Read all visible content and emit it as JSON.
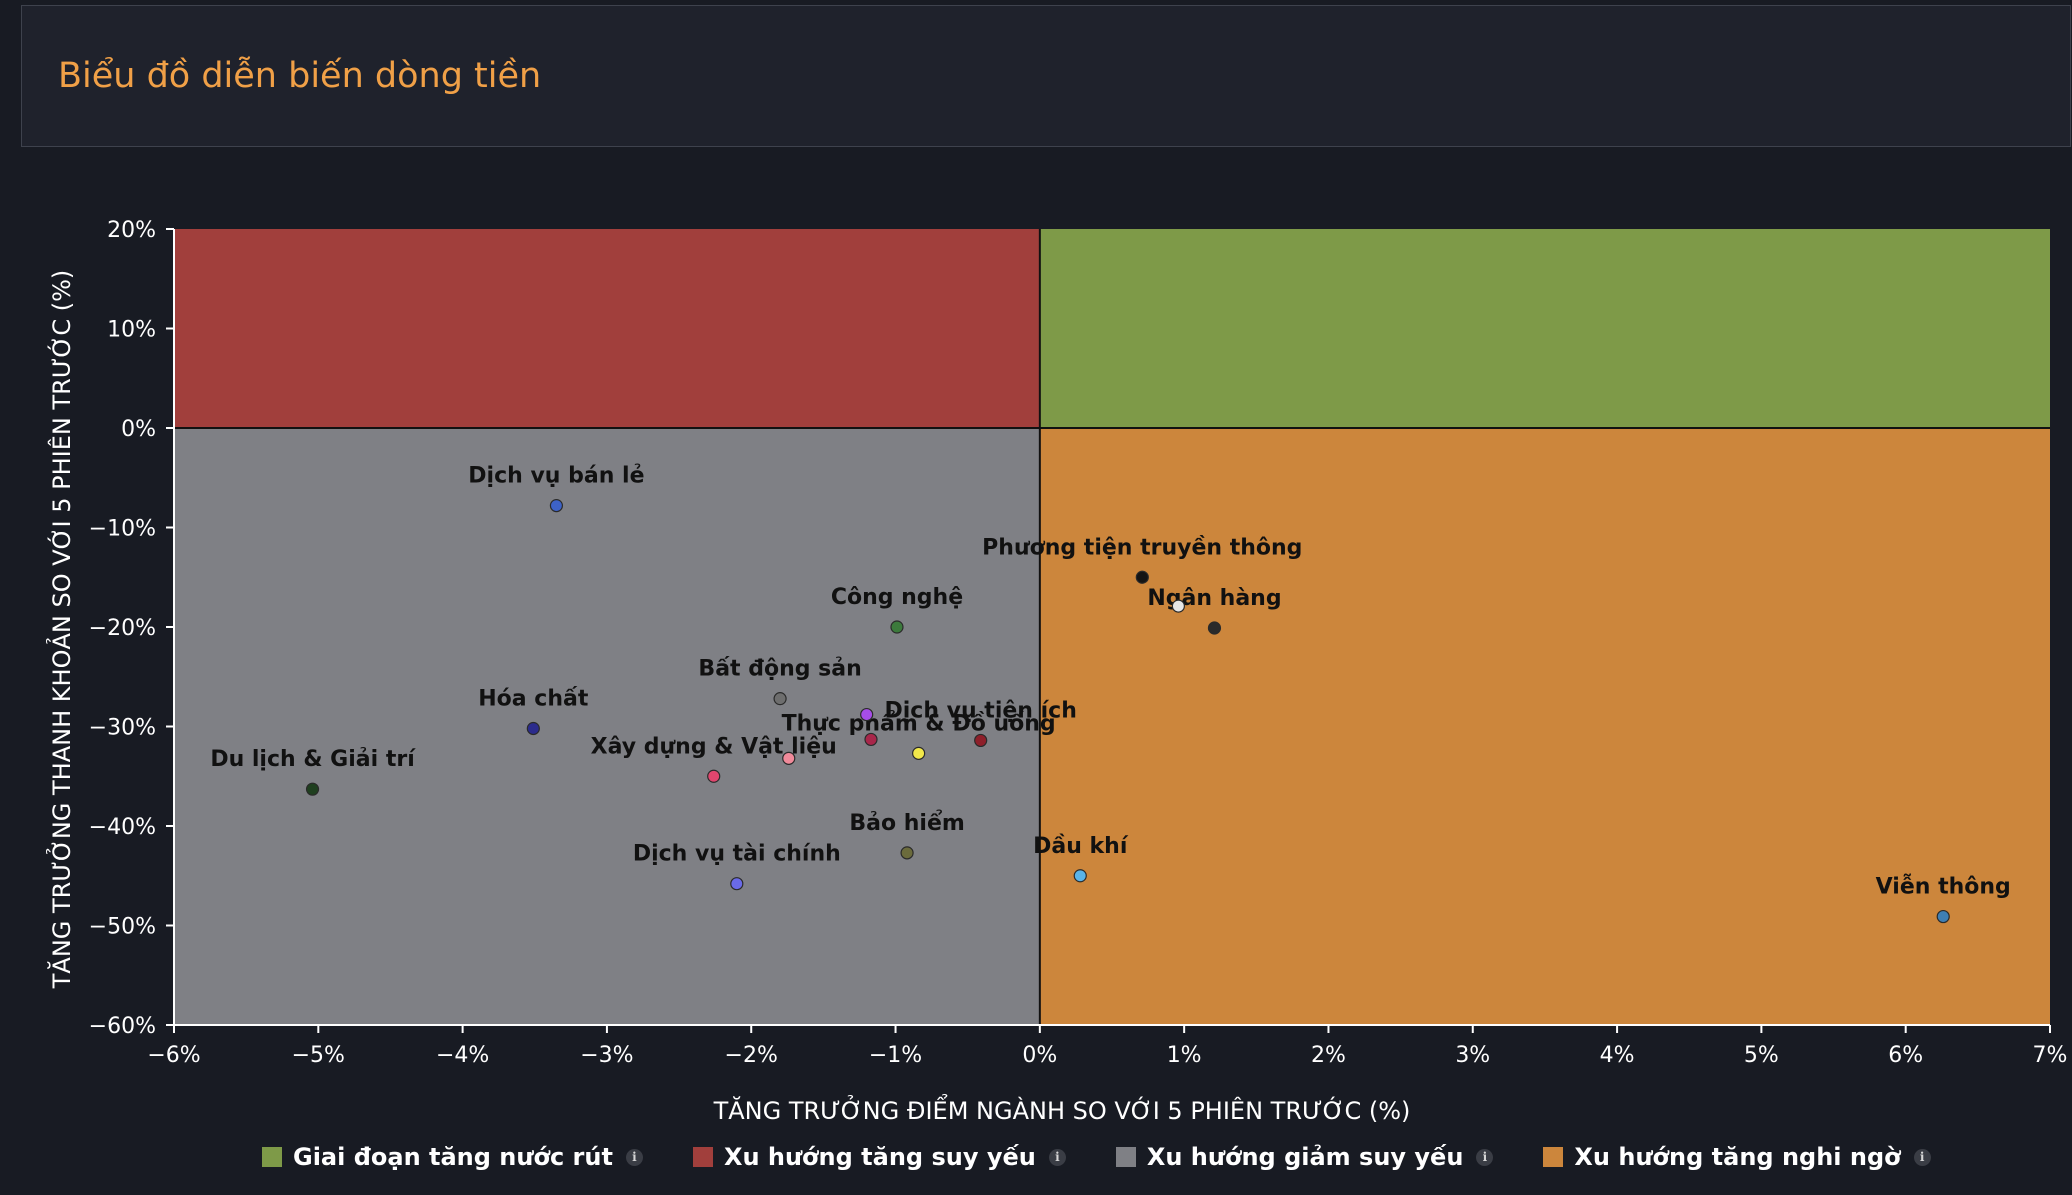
{
  "page": {
    "title": "Biểu đồ diễn biến dòng tiền"
  },
  "chart_data": {
    "type": "scatter",
    "title": "",
    "xlabel": "TĂNG TRƯỞNG ĐIỂM NGÀNH SO VỚI 5 PHIÊN TRƯỚC (%)",
    "ylabel": "TĂNG TRƯỞNG THANH KHOẢN SO VỚI 5 PHIÊN TRƯỚC (%)",
    "xlim": [
      -6,
      7
    ],
    "ylim": [
      -60,
      20
    ],
    "x_ticks": [
      -6,
      -5,
      -4,
      -3,
      -2,
      -1,
      0,
      1,
      2,
      3,
      4,
      5,
      6,
      7
    ],
    "y_ticks": [
      20,
      10,
      0,
      -10,
      -20,
      -30,
      -40,
      -50,
      -60
    ],
    "x_tick_labels": [
      "−6%",
      "−5%",
      "−4%",
      "−3%",
      "−2%",
      "−1%",
      "0%",
      "1%",
      "2%",
      "3%",
      "4%",
      "5%",
      "6%",
      "7%"
    ],
    "y_tick_labels": [
      "20%",
      "10%",
      "0%",
      "−10%",
      "−20%",
      "−30%",
      "−40%",
      "−50%",
      "−60%"
    ],
    "grid": false,
    "legend_position": "bottom",
    "quadrants": [
      {
        "key": "top-left",
        "color": "#a13f3c"
      },
      {
        "key": "top-right",
        "color": "#7e9a48"
      },
      {
        "key": "bottom-left",
        "color": "#7f8085"
      },
      {
        "key": "bottom-right",
        "color": "#cc863c"
      }
    ],
    "legend": [
      {
        "label": "Giai đoạn tăng nước rút",
        "color": "#7e9a48",
        "icon": "info-icon"
      },
      {
        "label": "Xu hướng tăng suy yếu",
        "color": "#a13f3c",
        "icon": "info-icon"
      },
      {
        "label": "Xu hướng giảm suy yếu",
        "color": "#7f8085",
        "icon": "info-icon"
      },
      {
        "label": "Xu hướng tăng nghi ngờ",
        "color": "#cc863c",
        "icon": "info-icon"
      }
    ],
    "points": [
      {
        "name": "Dịch vụ bán lẻ",
        "x": -3.35,
        "y": -7.8,
        "color": "#3d62c8"
      },
      {
        "name": "Công nghệ",
        "x": -0.99,
        "y": -20.0,
        "color": "#3c7a3c"
      },
      {
        "name": "Bất động sản",
        "x": -1.8,
        "y": -27.2,
        "color": "#6e6e6e"
      },
      {
        "name": "Hóa chất",
        "x": -3.51,
        "y": -30.2,
        "color": "#2b2b8c"
      },
      {
        "name": "Du lịch & Giải trí",
        "x": -5.04,
        "y": -36.3,
        "color": "#1f3f1f"
      },
      {
        "name": "Xây dựng & Vật liệu",
        "x": -2.26,
        "y": -35.0,
        "color": "#e0466e"
      },
      {
        "name": "Dịch vụ tài chính",
        "x": -2.1,
        "y": -45.8,
        "color": "#6a6ae8"
      },
      {
        "name": "Bảo hiểm",
        "x": -0.92,
        "y": -42.7,
        "color": "#6b6b3c"
      },
      {
        "name": "Thực phẩm & Đồ uống",
        "x": -0.84,
        "y": -32.7,
        "color": "#f2e84a"
      },
      {
        "name": "Dịch vụ tiện ích",
        "x": -0.41,
        "y": -31.4,
        "color": "#8e1f2a"
      },
      {
        "name": "Phương tiện truyền thông",
        "x": 0.71,
        "y": -15.0,
        "color": "#141414"
      },
      {
        "name": "Ngân hàng",
        "x": 1.21,
        "y": -20.1,
        "color": "#2a2a2a"
      },
      {
        "name": "Dầu khí",
        "x": 0.28,
        "y": -45.0,
        "color": "#5ab4e8"
      },
      {
        "name": "Viễn thông",
        "x": 6.26,
        "y": -49.1,
        "color": "#3f7fb4"
      },
      {
        "name": "",
        "x": -1.2,
        "y": -28.8,
        "color": "#a64de8"
      },
      {
        "name": "",
        "x": -1.17,
        "y": -31.3,
        "color": "#a8264a"
      },
      {
        "name": "",
        "x": -1.74,
        "y": -33.2,
        "color": "#f08a9a"
      },
      {
        "name": "",
        "x": 0.96,
        "y": -17.9,
        "color": "#e6e6e6"
      }
    ]
  }
}
